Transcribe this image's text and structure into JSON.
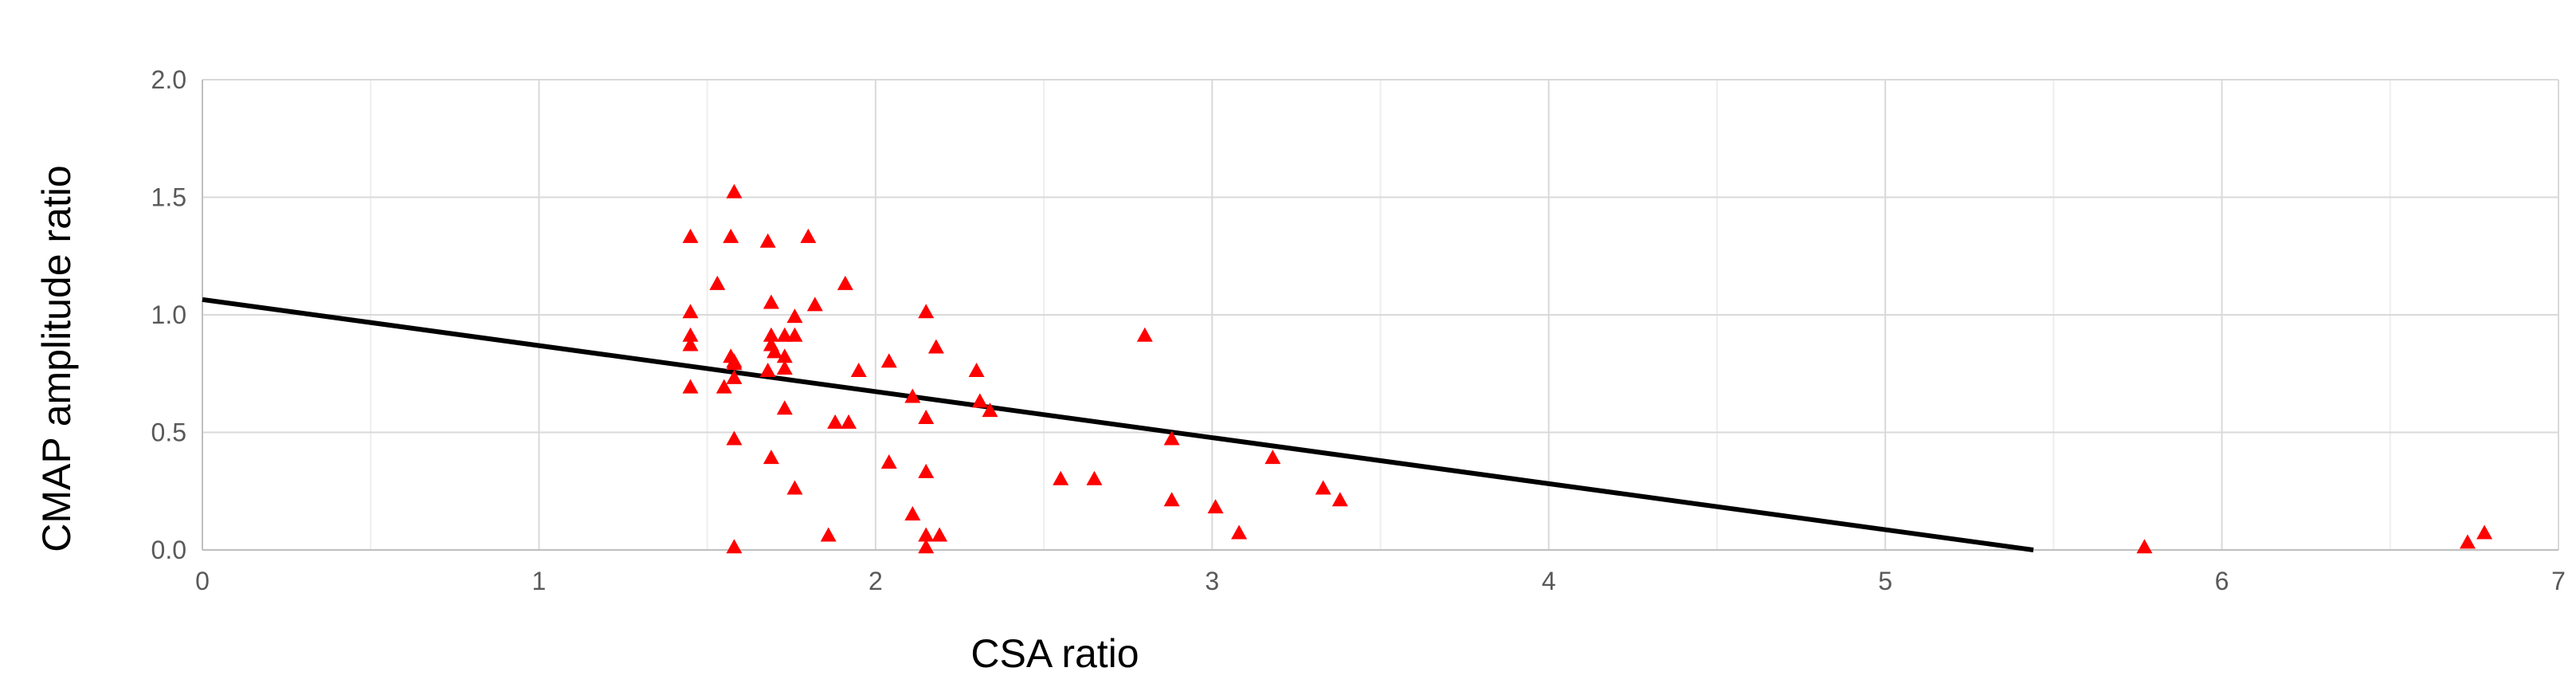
{
  "chart_data": {
    "type": "scatter",
    "title": "",
    "xlabel": "CSA ratio",
    "ylabel": "CMAP amplitude ratio",
    "xlim": [
      0,
      7
    ],
    "ylim": [
      0,
      2.0
    ],
    "xticks": [
      0,
      1,
      2,
      3,
      4,
      5,
      6,
      7
    ],
    "xtick_labels": [
      "0",
      "1",
      "2",
      "3",
      "4",
      "5",
      "6",
      "7"
    ],
    "yticks": [
      0,
      0.5,
      1.0,
      1.5,
      2.0
    ],
    "ytick_labels": [
      "0.0",
      "0.5",
      "1.0",
      "1.5",
      "2.0"
    ],
    "grid": true,
    "legend": "none",
    "marker": "triangle",
    "colors": {
      "points": "#ff0000",
      "line": "#000000",
      "grid": "#d9d9d9"
    },
    "series": [
      {
        "points": [
          [
            1.45,
            1.33
          ],
          [
            1.45,
            1.01
          ],
          [
            1.45,
            0.91
          ],
          [
            1.45,
            0.87
          ],
          [
            1.45,
            0.69
          ],
          [
            1.53,
            1.13
          ],
          [
            1.55,
            0.69
          ],
          [
            1.57,
            1.33
          ],
          [
            1.57,
            0.82
          ],
          [
            1.58,
            0.8
          ],
          [
            1.58,
            0.79
          ],
          [
            1.58,
            0.47
          ],
          [
            1.58,
            0.73
          ],
          [
            1.58,
            0.01
          ],
          [
            1.58,
            1.52
          ],
          [
            1.68,
            0.76
          ],
          [
            1.68,
            1.31
          ],
          [
            1.69,
            1.05
          ],
          [
            1.69,
            0.91
          ],
          [
            1.69,
            0.87
          ],
          [
            1.7,
            0.84
          ],
          [
            1.69,
            0.39
          ],
          [
            1.73,
            0.91
          ],
          [
            1.73,
            0.82
          ],
          [
            1.73,
            0.77
          ],
          [
            1.73,
            0.6
          ],
          [
            1.76,
            0.91
          ],
          [
            1.76,
            0.99
          ],
          [
            1.76,
            0.26
          ],
          [
            1.8,
            1.33
          ],
          [
            1.82,
            1.04
          ],
          [
            1.86,
            0.06
          ],
          [
            1.88,
            0.54
          ],
          [
            1.91,
            1.13
          ],
          [
            1.92,
            0.54
          ],
          [
            1.95,
            0.76
          ],
          [
            2.04,
            0.8
          ],
          [
            2.04,
            0.37
          ],
          [
            2.11,
            0.65
          ],
          [
            2.11,
            0.15
          ],
          [
            2.15,
            1.01
          ],
          [
            2.15,
            0.56
          ],
          [
            2.15,
            0.33
          ],
          [
            2.15,
            0.06
          ],
          [
            2.15,
            0.01
          ],
          [
            2.18,
            0.86
          ],
          [
            2.19,
            0.06
          ],
          [
            2.3,
            0.76
          ],
          [
            2.31,
            0.63
          ],
          [
            2.34,
            0.59
          ],
          [
            2.55,
            0.3
          ],
          [
            2.65,
            0.3
          ],
          [
            2.8,
            0.91
          ],
          [
            2.88,
            0.47
          ],
          [
            2.88,
            0.21
          ],
          [
            3.01,
            0.18
          ],
          [
            3.08,
            0.07
          ],
          [
            3.18,
            0.39
          ],
          [
            3.33,
            0.26
          ],
          [
            3.38,
            0.21
          ],
          [
            5.77,
            0.01
          ],
          [
            6.73,
            0.03
          ],
          [
            6.78,
            0.07
          ]
        ]
      }
    ],
    "trendline": {
      "type": "linear",
      "x": [
        0,
        5.44
      ],
      "y": [
        1.065,
        0.0
      ]
    }
  }
}
